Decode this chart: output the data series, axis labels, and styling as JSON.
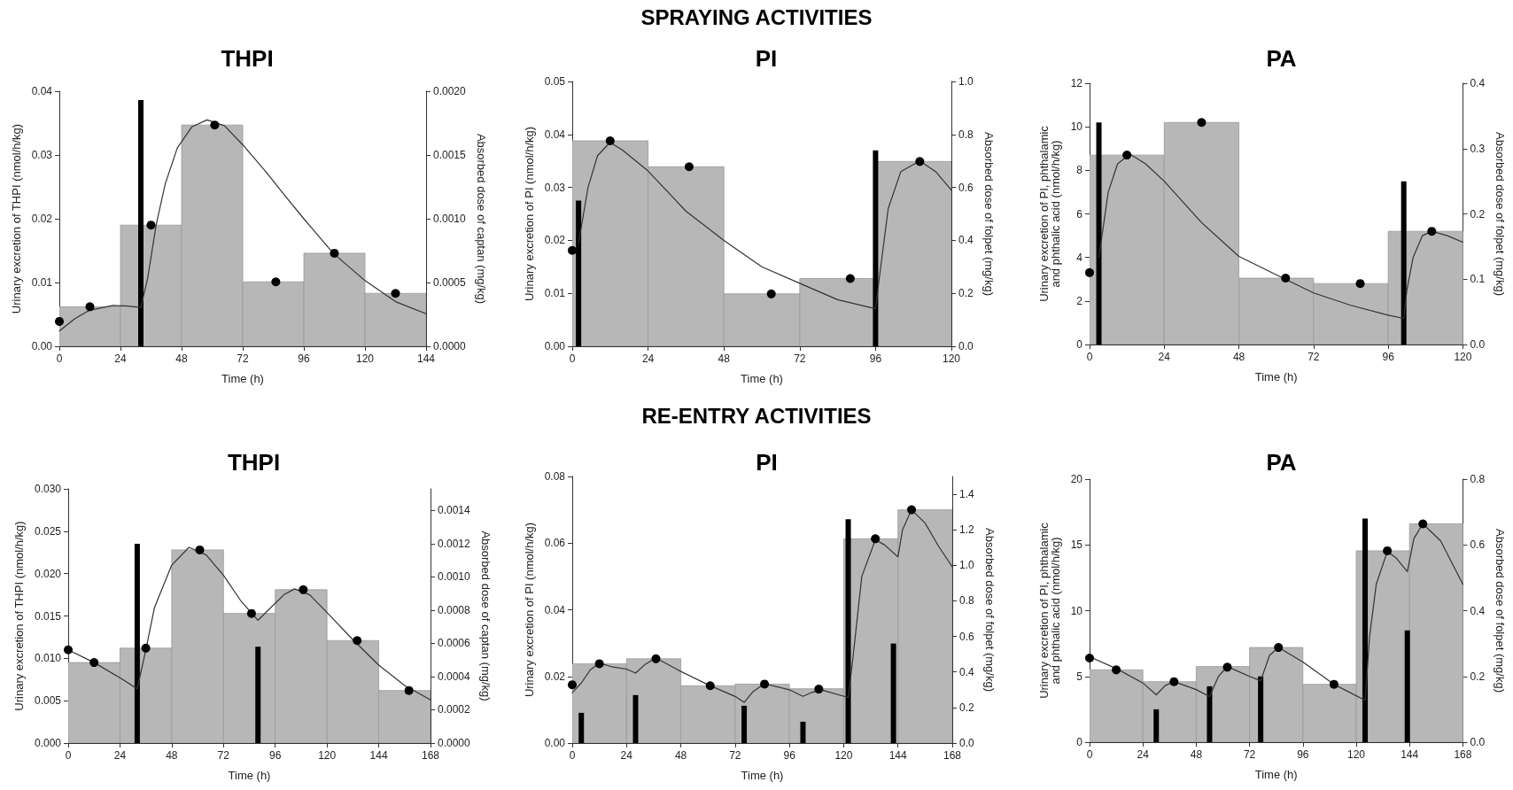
{
  "chart_data": [
    {
      "type": "histogram",
      "title": "THPI",
      "annotations": [
        "SPRAYING ACTIVITIES"
      ],
      "xlabel": "Time (h)",
      "ylabel": "Urinary excretion of THPI (nmol/h/kg)",
      "y2label": "Absorbed dose of captan (mg/kg)",
      "xlim": [
        0,
        144
      ],
      "xticks": [
        0,
        24,
        48,
        72,
        96,
        120,
        144
      ],
      "ylim": [
        0,
        0.04
      ],
      "yticks": [
        {
          "value": 0,
          "label": "0.00"
        },
        0.01,
        0.02,
        0.03,
        0.04
      ],
      "y2lim": [
        0,
        0.002
      ],
      "y2ticks": [
        {
          "value": 0,
          "label": "0.0000"
        },
        {
          "value": 0.0005,
          "label": "0.0005"
        },
        {
          "value": 0.001,
          "label": "0.0010"
        },
        {
          "value": 0.0015,
          "label": "0.0015"
        },
        {
          "value": 0.002,
          "label": "0.0020"
        }
      ],
      "series": [
        {
          "color": "#b7b7b7",
          "bins": [
            0,
            24,
            48,
            72,
            96,
            120,
            144
          ],
          "values": [
            0.0062,
            0.019,
            0.0347,
            0.0101,
            0.0146,
            0.0083
          ]
        },
        {
          "type": "bar",
          "axis": "y2",
          "color": "#000000",
          "x": [
            32
          ],
          "values": [
            0.00193
          ]
        },
        {
          "type": "line",
          "marker": "none",
          "line_style": "solid",
          "color": "#333333",
          "x": [
            0,
            6,
            11.5,
            21,
            27,
            32,
            34.7,
            38,
            41.6,
            46.3,
            52,
            58,
            64.8,
            72,
            81,
            88,
            96,
            107.5,
            120,
            132,
            144
          ],
          "values": [
            0.0024,
            0.0043,
            0.0056,
            0.0064,
            0.0063,
            0.0061,
            0.0107,
            0.019,
            0.0255,
            0.0311,
            0.0344,
            0.0355,
            0.0346,
            0.0316,
            0.0274,
            0.0239,
            0.02,
            0.0146,
            0.0103,
            0.007,
            0.0051
          ]
        },
        {
          "type": "scatter",
          "marker": "circle",
          "color": "#000000",
          "x": [
            0,
            12,
            36,
            61,
            85,
            108,
            132
          ],
          "values": [
            0.0039,
            0.0062,
            0.019,
            0.0347,
            0.0101,
            0.0146,
            0.0083
          ]
        }
      ]
    },
    {
      "type": "histogram",
      "title": "PI",
      "xlabel": "Time (h)",
      "ylabel": "Urinary excretion of PI (nmol/h/kg)",
      "y2label": "Absorbed dose of folpet (mg/kg)",
      "xlim": [
        0,
        120
      ],
      "xticks": [
        0,
        24,
        48,
        72,
        96,
        120
      ],
      "ylim": [
        0,
        0.05
      ],
      "yticks": [
        {
          "value": 0,
          "label": "0.00"
        },
        0.01,
        0.02,
        0.03,
        0.04,
        0.05
      ],
      "y2lim": [
        0,
        1
      ],
      "y2ticks": [
        {
          "value": 0,
          "label": "0.0"
        },
        0.2,
        0.4,
        0.6,
        0.8,
        {
          "value": 1,
          "label": "1.0"
        }
      ],
      "series": [
        {
          "color": "#b7b7b7",
          "bins": [
            0,
            24,
            48,
            72,
            96,
            120
          ],
          "values": [
            0.0388,
            0.0339,
            0.0099,
            0.0128,
            0.0349
          ]
        },
        {
          "type": "bar",
          "axis": "y2",
          "color": "#000000",
          "x": [
            2,
            96
          ],
          "values": [
            0.55,
            0.74
          ]
        },
        {
          "type": "line",
          "marker": "none",
          "line_style": "solid",
          "color": "#333333",
          "x": [
            2,
            5,
            8,
            12,
            16,
            24,
            36,
            48,
            60,
            72,
            84,
            96,
            97,
            100,
            104,
            110,
            115,
            120
          ],
          "values": [
            0.0195,
            0.03,
            0.036,
            0.0385,
            0.037,
            0.0331,
            0.0255,
            0.02,
            0.015,
            0.0119,
            0.0088,
            0.0071,
            0.012,
            0.026,
            0.033,
            0.035,
            0.033,
            0.0295
          ]
        },
        {
          "type": "scatter",
          "marker": "circle",
          "color": "#000000",
          "x": [
            0,
            12,
            37,
            63,
            88,
            110
          ],
          "values": [
            0.0181,
            0.0388,
            0.0339,
            0.0099,
            0.0128,
            0.0349
          ]
        }
      ]
    },
    {
      "type": "histogram",
      "title": "PA",
      "xlabel": "Time (h)",
      "ylabel": "Urinary excretion of PI, phthalamic\nand phthalic acid (nmol/h/kg)",
      "y2label": "Absorbed dose of folpet (mg/kg)",
      "xlim": [
        0,
        120
      ],
      "xticks": [
        0,
        24,
        48,
        72,
        96,
        120
      ],
      "ylim": [
        0,
        12
      ],
      "yticks": [
        0,
        2,
        4,
        6,
        8,
        10,
        12
      ],
      "y2lim": [
        0,
        0.4
      ],
      "y2ticks": [
        {
          "value": 0,
          "label": "0.0"
        },
        0.1,
        0.2,
        0.3,
        0.4
      ],
      "series": [
        {
          "color": "#b7b7b7",
          "bins": [
            0,
            24,
            48,
            72,
            96,
            120
          ],
          "values": [
            8.7,
            10.2,
            3.05,
            2.8,
            5.2
          ]
        },
        {
          "type": "bar",
          "axis": "y2",
          "color": "#000000",
          "x": [
            3,
            101
          ],
          "values": [
            0.34,
            0.25
          ]
        },
        {
          "type": "line",
          "marker": "none",
          "line_style": "solid",
          "color": "#333333",
          "x": [
            3,
            6,
            9,
            13,
            18,
            24,
            36,
            48,
            60,
            72,
            84,
            96,
            101,
            102,
            104,
            107,
            110,
            115,
            120
          ],
          "values": [
            4.0,
            7.0,
            8.3,
            8.75,
            8.3,
            7.5,
            5.6,
            4.05,
            3.2,
            2.37,
            1.8,
            1.35,
            1.2,
            2.5,
            4.0,
            5.0,
            5.2,
            5.0,
            4.7
          ]
        },
        {
          "type": "scatter",
          "marker": "circle",
          "color": "#000000",
          "x": [
            0,
            12,
            36,
            63,
            87,
            110
          ],
          "values": [
            3.3,
            8.7,
            10.2,
            3.05,
            2.8,
            5.2
          ]
        }
      ]
    },
    {
      "type": "histogram",
      "title": "THPI",
      "annotations": [
        "RE-ENTRY ACTIVITIES"
      ],
      "xlabel": "Time (h)",
      "ylabel": "Urinary excretion of THPI (nmol/h/kg)",
      "y2label": "Absorbed dose of captan (mg/kg)",
      "xlim": [
        0,
        168
      ],
      "xticks": [
        0,
        24,
        48,
        72,
        96,
        120,
        144,
        168
      ],
      "ylim": [
        0,
        0.03
      ],
      "yticks": [
        {
          "value": 0,
          "label": "0.000"
        },
        {
          "value": 0.005,
          "label": "0.005"
        },
        {
          "value": 0.01,
          "label": "0.010"
        },
        {
          "value": 0.015,
          "label": "0.015"
        },
        {
          "value": 0.02,
          "label": "0.020"
        },
        {
          "value": 0.025,
          "label": "0.025"
        },
        {
          "value": 0.03,
          "label": "0.030"
        }
      ],
      "y2lim": [
        0,
        0.00153
      ],
      "y2ticks": [
        {
          "value": 0,
          "label": "0.0000"
        },
        {
          "value": 0.0002,
          "label": "0.0002"
        },
        {
          "value": 0.0004,
          "label": "0.0004"
        },
        {
          "value": 0.0006,
          "label": "0.0006"
        },
        {
          "value": 0.0008,
          "label": "0.0008"
        },
        {
          "value": 0.001,
          "label": "0.0010"
        },
        {
          "value": 0.0012,
          "label": "0.0012"
        },
        {
          "value": 0.0014,
          "label": "0.0014"
        }
      ],
      "series": [
        {
          "color": "#b7b7b7",
          "bins": [
            0,
            24,
            48,
            72,
            96,
            120,
            144,
            168
          ],
          "values": [
            0.0095,
            0.0112,
            0.0228,
            0.0153,
            0.0181,
            0.0121,
            0.0062
          ]
        },
        {
          "type": "bar",
          "axis": "y2",
          "color": "#000000",
          "x": [
            32,
            88
          ],
          "values": [
            0.0012,
            0.00058
          ]
        },
        {
          "type": "line",
          "marker": "none",
          "line_style": "solid",
          "color": "#333333",
          "x": [
            0,
            12,
            24,
            32,
            36,
            40,
            48,
            56,
            64,
            72,
            80,
            88,
            92,
            100,
            105,
            112,
            120,
            132,
            144,
            156,
            168
          ],
          "values": [
            0.011,
            0.0095,
            0.0077,
            0.0064,
            0.011,
            0.016,
            0.021,
            0.0231,
            0.0222,
            0.0198,
            0.0168,
            0.0145,
            0.0155,
            0.0175,
            0.0182,
            0.0175,
            0.0154,
            0.0122,
            0.0092,
            0.0068,
            0.0051
          ]
        },
        {
          "type": "scatter",
          "marker": "circle",
          "color": "#000000",
          "x": [
            0,
            12,
            36,
            61,
            85,
            109,
            134,
            158
          ],
          "values": [
            0.011,
            0.0095,
            0.0112,
            0.0228,
            0.0153,
            0.0181,
            0.0121,
            0.0062
          ]
        }
      ]
    },
    {
      "type": "histogram",
      "title": "PI",
      "xlabel": "Time (h)",
      "ylabel": "Urinary excretion of PI (nmol/h/kg)",
      "y2label": "Absorbed dose of folpet (mg/kg)",
      "xlim": [
        0,
        168
      ],
      "xticks": [
        0,
        24,
        48,
        72,
        96,
        120,
        144,
        168
      ],
      "ylim": [
        0,
        0.08
      ],
      "yticks": [
        {
          "value": 0,
          "label": "0.00"
        },
        {
          "value": 0.02,
          "label": "0.02"
        },
        {
          "value": 0.04,
          "label": "0.04"
        },
        {
          "value": 0.06,
          "label": "0.06"
        },
        {
          "value": 0.08,
          "label": "0.08"
        }
      ],
      "y2lim": [
        0,
        1.5
      ],
      "y2ticks": [
        {
          "value": 0,
          "label": "0.0"
        },
        0.2,
        0.4,
        0.6,
        0.8,
        {
          "value": 1,
          "label": "1.0"
        },
        1.2,
        1.4
      ],
      "series": [
        {
          "color": "#b7b7b7",
          "bins": [
            0,
            24,
            48,
            72,
            96,
            120,
            144,
            168
          ],
          "values": [
            0.0238,
            0.0253,
            0.0172,
            0.0177,
            0.0163,
            0.0613,
            0.07
          ]
        },
        {
          "type": "bar",
          "axis": "y2",
          "color": "#000000",
          "x": [
            4,
            28,
            76,
            102,
            122,
            142
          ],
          "values": [
            0.17,
            0.27,
            0.21,
            0.12,
            1.26,
            0.56
          ]
        },
        {
          "type": "line",
          "marker": "none",
          "line_style": "solid",
          "color": "#333333",
          "x": [
            0,
            4,
            8,
            12,
            18,
            24,
            28,
            32,
            37,
            48,
            60,
            72,
            76,
            80,
            85,
            96,
            102,
            106,
            110,
            122,
            124,
            128,
            134,
            138,
            144,
            146,
            150,
            156,
            162,
            168
          ],
          "values": [
            0.0151,
            0.018,
            0.022,
            0.024,
            0.0228,
            0.0222,
            0.021,
            0.0235,
            0.0255,
            0.0215,
            0.0175,
            0.014,
            0.0122,
            0.0155,
            0.0178,
            0.016,
            0.014,
            0.0152,
            0.016,
            0.0137,
            0.025,
            0.05,
            0.061,
            0.0595,
            0.0559,
            0.064,
            0.07,
            0.066,
            0.059,
            0.0529
          ]
        },
        {
          "type": "scatter",
          "marker": "circle",
          "color": "#000000",
          "x": [
            0,
            12,
            37,
            61,
            85,
            109,
            134,
            150
          ],
          "values": [
            0.0175,
            0.0238,
            0.0253,
            0.0172,
            0.0177,
            0.0162,
            0.0613,
            0.07
          ]
        }
      ]
    },
    {
      "type": "histogram",
      "title": "PA",
      "xlabel": "Time (h)",
      "ylabel": "Urinary excretion of PI, phthalamic\nand phthalic acid (nmol/h/kg)",
      "y2label": "Absorbed dose of folpet (mg/kg)",
      "xlim": [
        0,
        168
      ],
      "xticks": [
        0,
        24,
        48,
        72,
        96,
        120,
        144,
        168
      ],
      "ylim": [
        0,
        20
      ],
      "yticks": [
        0,
        5,
        10,
        15,
        20
      ],
      "y2lim": [
        0,
        0.8
      ],
      "y2ticks": [
        {
          "value": 0,
          "label": "0.0"
        },
        0.2,
        0.4,
        0.6,
        0.8
      ],
      "series": [
        {
          "color": "#b7b7b7",
          "bins": [
            0,
            24,
            48,
            72,
            96,
            120,
            144,
            168
          ],
          "values": [
            5.5,
            4.6,
            5.75,
            7.2,
            4.4,
            14.55,
            16.6
          ]
        },
        {
          "type": "bar",
          "axis": "y2",
          "color": "#000000",
          "x": [
            30,
            54,
            77,
            124,
            143
          ],
          "values": [
            0.1,
            0.17,
            0.2,
            0.68,
            0.34
          ]
        },
        {
          "type": "line",
          "marker": "none",
          "line_style": "solid",
          "color": "#333333",
          "x": [
            0,
            12,
            24,
            30,
            34,
            38,
            48,
            54,
            58,
            62,
            72,
            77,
            81,
            85,
            96,
            110,
            124,
            126,
            129,
            134,
            138,
            143,
            146,
            150,
            158,
            168
          ],
          "values": [
            6.5,
            5.6,
            4.5,
            3.6,
            4.3,
            4.6,
            4.0,
            3.47,
            5.0,
            5.75,
            5.0,
            4.67,
            6.6,
            7.2,
            6.1,
            4.4,
            3.18,
            8.0,
            12.0,
            14.5,
            14.0,
            12.97,
            15.5,
            16.6,
            15.3,
            12.0
          ]
        },
        {
          "type": "scatter",
          "marker": "circle",
          "color": "#000000",
          "x": [
            0,
            12,
            38,
            62,
            85,
            110,
            134,
            150
          ],
          "values": [
            6.4,
            5.5,
            4.6,
            5.7,
            7.2,
            4.4,
            14.55,
            16.6
          ]
        }
      ]
    }
  ]
}
